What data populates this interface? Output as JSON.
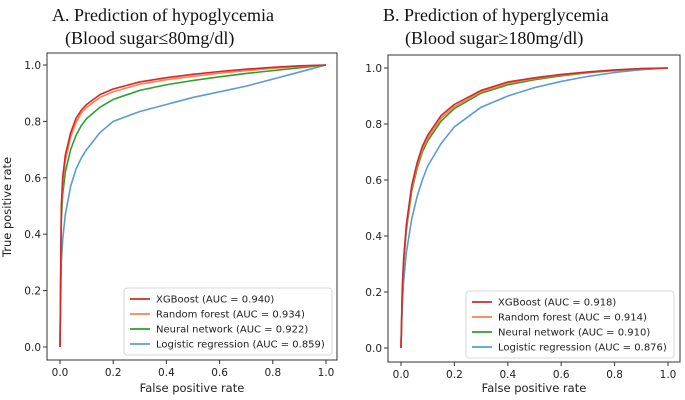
{
  "chart_data": [
    {
      "type": "line",
      "title_line1": "A. Prediction of hypoglycemia",
      "title_line2": "(Blood sugar≤80mg/dl)",
      "xlabel": "False positive rate",
      "ylabel": "True positive rate",
      "xlim": [
        0,
        1
      ],
      "ylim": [
        0,
        1
      ],
      "xticks": [
        "0.0",
        "0.2",
        "0.4",
        "0.6",
        "0.8",
        "1.0"
      ],
      "yticks": [
        "0.0",
        "0.2",
        "0.4",
        "0.6",
        "0.8",
        "1.0"
      ],
      "legend_position": "bottom-right",
      "series": [
        {
          "name": "XGBoost (AUC = 0.940)",
          "color": "#d62728",
          "x": [
            0,
            0.005,
            0.01,
            0.02,
            0.04,
            0.06,
            0.08,
            0.1,
            0.15,
            0.2,
            0.3,
            0.4,
            0.5,
            0.6,
            0.7,
            0.8,
            0.9,
            1.0
          ],
          "y": [
            0,
            0.5,
            0.6,
            0.68,
            0.76,
            0.81,
            0.84,
            0.86,
            0.895,
            0.915,
            0.94,
            0.955,
            0.967,
            0.977,
            0.985,
            0.992,
            0.997,
            1.0
          ]
        },
        {
          "name": "Random forest (AUC = 0.934)",
          "color": "#ff7f50",
          "x": [
            0,
            0.005,
            0.01,
            0.02,
            0.04,
            0.06,
            0.08,
            0.1,
            0.15,
            0.2,
            0.3,
            0.4,
            0.5,
            0.6,
            0.7,
            0.8,
            0.9,
            1.0
          ],
          "y": [
            0,
            0.48,
            0.58,
            0.66,
            0.745,
            0.795,
            0.83,
            0.85,
            0.885,
            0.905,
            0.932,
            0.948,
            0.96,
            0.971,
            0.98,
            0.988,
            0.995,
            1.0
          ]
        },
        {
          "name": "Neural network (AUC = 0.922)",
          "color": "#2ca02c",
          "x": [
            0,
            0.005,
            0.01,
            0.02,
            0.04,
            0.06,
            0.08,
            0.1,
            0.15,
            0.2,
            0.3,
            0.4,
            0.5,
            0.6,
            0.7,
            0.8,
            0.9,
            1.0
          ],
          "y": [
            0,
            0.45,
            0.54,
            0.62,
            0.7,
            0.75,
            0.785,
            0.81,
            0.85,
            0.878,
            0.91,
            0.93,
            0.945,
            0.958,
            0.97,
            0.98,
            0.99,
            1.0
          ]
        },
        {
          "name": "Logistic regression (AUC = 0.859)",
          "color": "#5b9bd5",
          "x": [
            0,
            0.005,
            0.01,
            0.02,
            0.04,
            0.06,
            0.08,
            0.1,
            0.15,
            0.2,
            0.3,
            0.4,
            0.5,
            0.6,
            0.7,
            0.8,
            0.9,
            1.0
          ],
          "y": [
            0,
            0.3,
            0.38,
            0.47,
            0.57,
            0.63,
            0.67,
            0.7,
            0.76,
            0.8,
            0.835,
            0.86,
            0.885,
            0.905,
            0.925,
            0.95,
            0.975,
            1.0
          ]
        }
      ]
    },
    {
      "type": "line",
      "title_line1": "B. Prediction of hyperglycemia",
      "title_line2": "(Blood sugar≥180mg/dl)",
      "xlabel": "False positive rate",
      "ylabel": "",
      "xlim": [
        0,
        1
      ],
      "ylim": [
        0,
        1
      ],
      "xticks": [
        "0.0",
        "0.2",
        "0.4",
        "0.6",
        "0.8",
        "1.0"
      ],
      "yticks": [
        "0.0",
        "0.2",
        "0.4",
        "0.6",
        "0.8",
        "1.0"
      ],
      "legend_position": "bottom-right",
      "series": [
        {
          "name": "XGBoost (AUC = 0.918)",
          "color": "#d62728",
          "x": [
            0,
            0.005,
            0.01,
            0.02,
            0.04,
            0.06,
            0.08,
            0.1,
            0.15,
            0.2,
            0.3,
            0.4,
            0.5,
            0.6,
            0.7,
            0.8,
            0.9,
            1.0
          ],
          "y": [
            0,
            0.22,
            0.32,
            0.44,
            0.58,
            0.66,
            0.72,
            0.76,
            0.83,
            0.87,
            0.92,
            0.95,
            0.965,
            0.977,
            0.986,
            0.993,
            0.998,
            1.0
          ]
        },
        {
          "name": "Random forest (AUC = 0.914)",
          "color": "#ff7f50",
          "x": [
            0,
            0.005,
            0.01,
            0.02,
            0.04,
            0.06,
            0.08,
            0.1,
            0.15,
            0.2,
            0.3,
            0.4,
            0.5,
            0.6,
            0.7,
            0.8,
            0.9,
            1.0
          ],
          "y": [
            0,
            0.21,
            0.31,
            0.43,
            0.57,
            0.65,
            0.71,
            0.75,
            0.82,
            0.862,
            0.915,
            0.945,
            0.962,
            0.975,
            0.985,
            0.992,
            0.997,
            1.0
          ]
        },
        {
          "name": "Neural network (AUC = 0.910)",
          "color": "#2ca02c",
          "x": [
            0,
            0.005,
            0.01,
            0.02,
            0.04,
            0.06,
            0.08,
            0.1,
            0.15,
            0.2,
            0.3,
            0.4,
            0.5,
            0.6,
            0.7,
            0.8,
            0.9,
            1.0
          ],
          "y": [
            0,
            0.2,
            0.3,
            0.42,
            0.56,
            0.64,
            0.7,
            0.74,
            0.81,
            0.855,
            0.91,
            0.94,
            0.958,
            0.972,
            0.983,
            0.991,
            0.997,
            1.0
          ]
        },
        {
          "name": "Logistic regression (AUC = 0.876)",
          "color": "#5b9bd5",
          "x": [
            0,
            0.005,
            0.01,
            0.02,
            0.04,
            0.06,
            0.08,
            0.1,
            0.15,
            0.2,
            0.3,
            0.4,
            0.5,
            0.6,
            0.7,
            0.8,
            0.9,
            1.0
          ],
          "y": [
            0,
            0.16,
            0.24,
            0.34,
            0.46,
            0.54,
            0.6,
            0.65,
            0.73,
            0.79,
            0.86,
            0.9,
            0.93,
            0.952,
            0.97,
            0.984,
            0.994,
            1.0
          ]
        }
      ]
    }
  ]
}
